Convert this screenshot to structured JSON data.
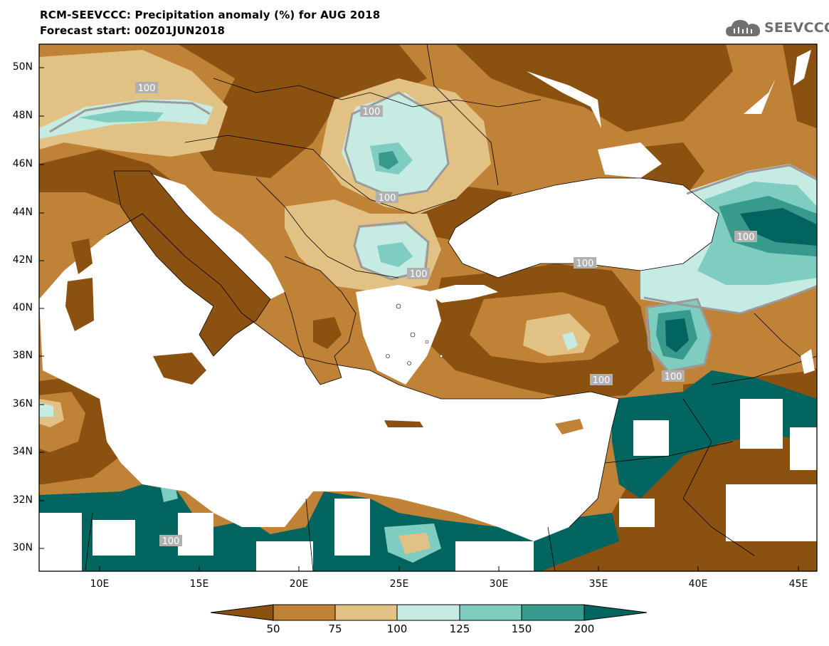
{
  "header": {
    "title_line1": "RCM-SEEVCCC: Precipitation anomaly (%) for AUG 2018",
    "title_line2": "Forecast start: 00Z01JUN2018"
  },
  "logo": {
    "text": "SEEVCCC",
    "icon": "cloud-icon"
  },
  "map": {
    "lat_labels": [
      "50N",
      "48N",
      "46N",
      "44N",
      "42N",
      "40N",
      "38N",
      "36N",
      "34N",
      "32N",
      "30N"
    ],
    "lon_labels": [
      "10E",
      "15E",
      "20E",
      "25E",
      "30E",
      "35E",
      "40E",
      "45E"
    ],
    "contour_label": "100"
  },
  "colorbar": {
    "colors": [
      "#8a5110",
      "#bf8236",
      "#e2c184",
      "#c5ebe3",
      "#7fcdc0",
      "#379a8c",
      "#00655e"
    ],
    "tick_labels": [
      "50",
      "75",
      "100",
      "125",
      "150",
      "200"
    ]
  }
}
